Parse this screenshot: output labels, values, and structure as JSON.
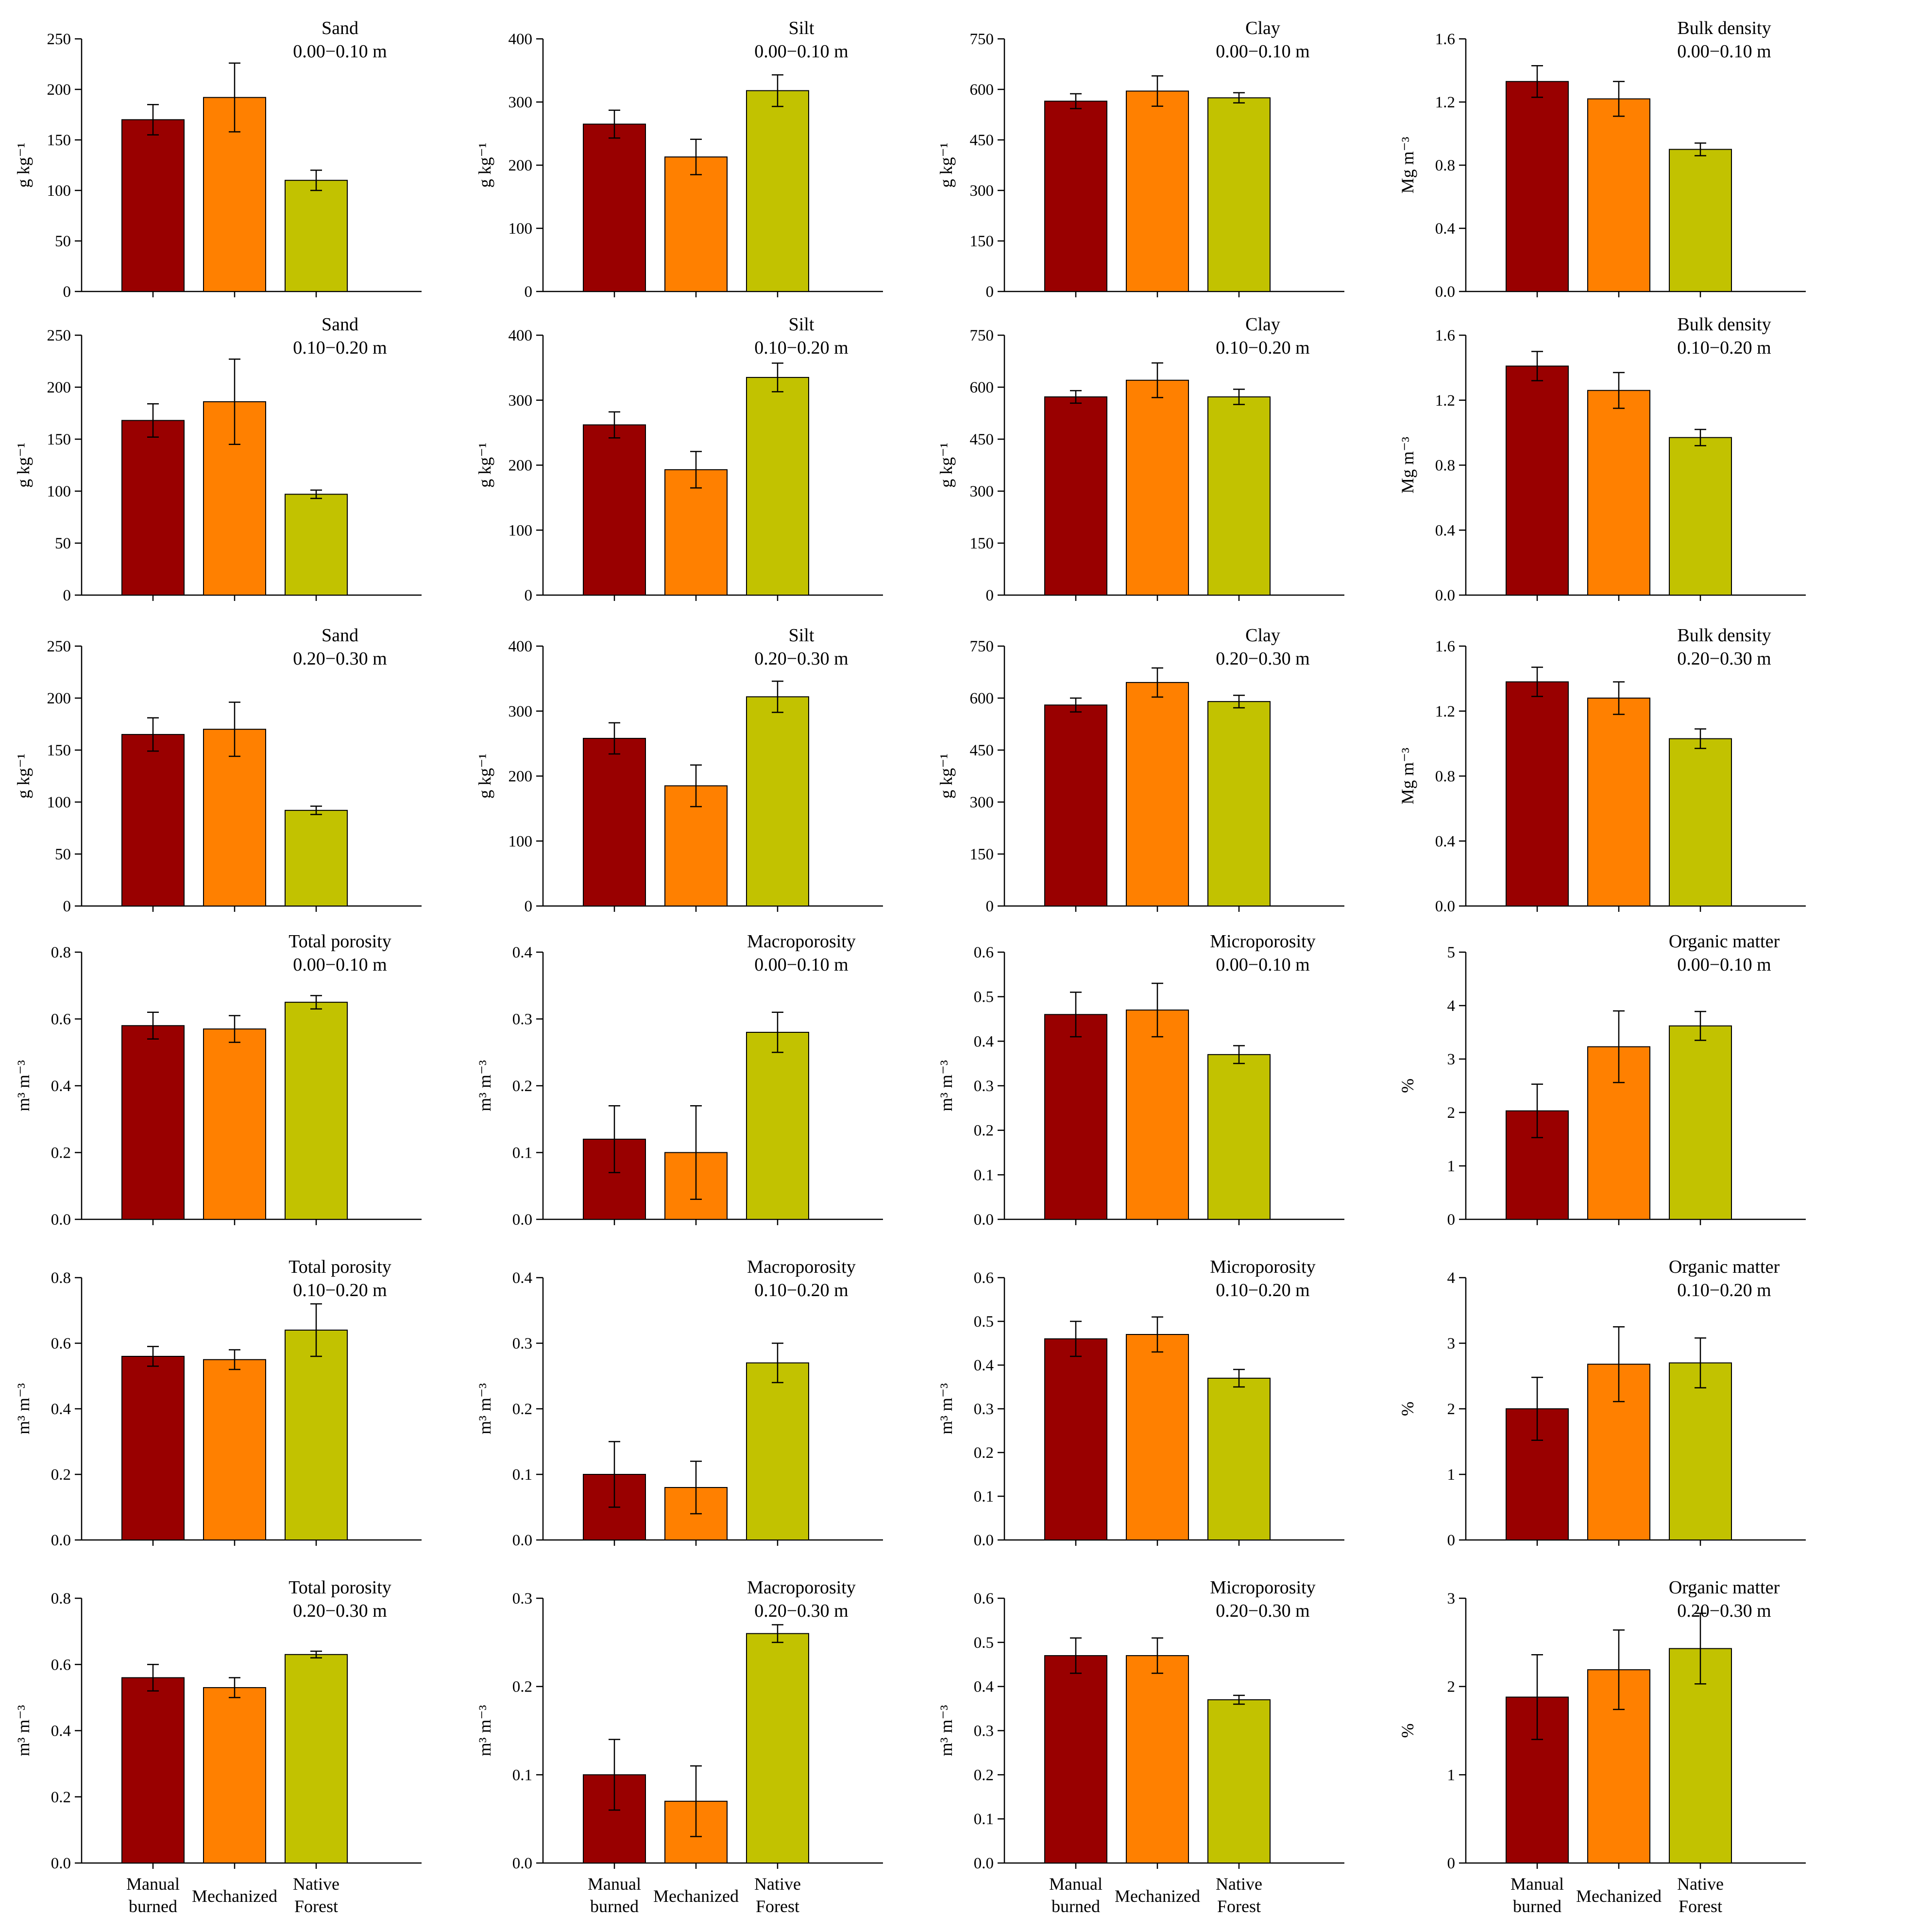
{
  "chart_data": {
    "type": "bar",
    "categories": [
      {
        "lines": [
          "Manual",
          "burned"
        ]
      },
      {
        "lines": [
          "Mechanized"
        ]
      },
      {
        "lines": [
          "Native",
          "Forest"
        ]
      }
    ],
    "colors": [
      "#990000",
      "#ff8000",
      "#c2c200"
    ],
    "panels": [
      {
        "title": "Sand",
        "depth": "0.00−0.10 m",
        "ylabel": "g kg⁻¹",
        "ylim": [
          0,
          250
        ],
        "yticks": [
          "0",
          "50",
          "100",
          "150",
          "200",
          "250"
        ],
        "values": [
          170,
          192,
          110
        ],
        "errors": [
          15,
          34,
          10
        ]
      },
      {
        "title": "Silt",
        "depth": "0.00−0.10 m",
        "ylabel": "g kg⁻¹",
        "ylim": [
          0,
          400
        ],
        "yticks": [
          "0",
          "100",
          "200",
          "300",
          "400"
        ],
        "values": [
          265,
          213,
          318
        ],
        "errors": [
          22,
          28,
          25
        ]
      },
      {
        "title": "Clay",
        "depth": "0.00−0.10 m",
        "ylabel": "g kg⁻¹",
        "ylim": [
          0,
          750
        ],
        "yticks": [
          "0",
          "150",
          "300",
          "450",
          "600",
          "750"
        ],
        "values": [
          565,
          595,
          575
        ],
        "errors": [
          22,
          45,
          15
        ]
      },
      {
        "title": "Bulk density",
        "depth": "0.00−0.10 m",
        "ylabel": "Mg m⁻³",
        "ylim": [
          0,
          1.6
        ],
        "yticks": [
          "0.0",
          "0.4",
          "0.8",
          "1.2",
          "1.6"
        ],
        "values": [
          1.33,
          1.22,
          0.9
        ],
        "errors": [
          0.1,
          0.11,
          0.04
        ]
      },
      {
        "title": "Sand",
        "depth": "0.10−0.20 m",
        "ylabel": "g kg⁻¹",
        "ylim": [
          0,
          250
        ],
        "yticks": [
          "0",
          "50",
          "100",
          "150",
          "200",
          "250"
        ],
        "values": [
          168,
          186,
          97
        ],
        "errors": [
          16,
          41,
          4
        ]
      },
      {
        "title": "Silt",
        "depth": "0.10−0.20 m",
        "ylabel": "g kg⁻¹",
        "ylim": [
          0,
          400
        ],
        "yticks": [
          "0",
          "100",
          "200",
          "300",
          "400"
        ],
        "values": [
          262,
          193,
          335
        ],
        "errors": [
          20,
          28,
          22
        ]
      },
      {
        "title": "Clay",
        "depth": "0.10−0.20 m",
        "ylabel": "g kg⁻¹",
        "ylim": [
          0,
          750
        ],
        "yticks": [
          "0",
          "150",
          "300",
          "450",
          "600",
          "750"
        ],
        "values": [
          572,
          620,
          572
        ],
        "errors": [
          18,
          50,
          22
        ]
      },
      {
        "title": "Bulk density",
        "depth": "0.10−0.20 m",
        "ylabel": "Mg m⁻³",
        "ylim": [
          0,
          1.6
        ],
        "yticks": [
          "0.0",
          "0.4",
          "0.8",
          "1.2",
          "1.6"
        ],
        "values": [
          1.41,
          1.26,
          0.97
        ],
        "errors": [
          0.09,
          0.11,
          0.05
        ]
      },
      {
        "title": "Sand",
        "depth": "0.20−0.30 m",
        "ylabel": "g kg⁻¹",
        "ylim": [
          0,
          250
        ],
        "yticks": [
          "0",
          "50",
          "100",
          "150",
          "200",
          "250"
        ],
        "values": [
          165,
          170,
          92
        ],
        "errors": [
          16,
          26,
          4
        ]
      },
      {
        "title": "Silt",
        "depth": "0.20−0.30 m",
        "ylabel": "g kg⁻¹",
        "ylim": [
          0,
          400
        ],
        "yticks": [
          "0",
          "100",
          "200",
          "300",
          "400"
        ],
        "values": [
          258,
          185,
          322
        ],
        "errors": [
          24,
          32,
          24
        ]
      },
      {
        "title": "Clay",
        "depth": "0.20−0.30 m",
        "ylabel": "g kg⁻¹",
        "ylim": [
          0,
          750
        ],
        "yticks": [
          "0",
          "150",
          "300",
          "450",
          "600",
          "750"
        ],
        "values": [
          580,
          645,
          590
        ],
        "errors": [
          20,
          42,
          18
        ]
      },
      {
        "title": "Bulk density",
        "depth": "0.20−0.30 m",
        "ylabel": "Mg m⁻³",
        "ylim": [
          0,
          1.6
        ],
        "yticks": [
          "0.0",
          "0.4",
          "0.8",
          "1.2",
          "1.6"
        ],
        "values": [
          1.38,
          1.28,
          1.03
        ],
        "errors": [
          0.09,
          0.1,
          0.06
        ]
      },
      {
        "title": "Total porosity",
        "depth": "0.00−0.10 m",
        "ylabel": "m³ m⁻³",
        "ylim": [
          0,
          0.8
        ],
        "yticks": [
          "0.0",
          "0.2",
          "0.4",
          "0.6",
          "0.8"
        ],
        "values": [
          0.58,
          0.57,
          0.65
        ],
        "errors": [
          0.04,
          0.04,
          0.02
        ]
      },
      {
        "title": "Macroporosity",
        "depth": "0.00−0.10 m",
        "ylabel": "m³ m⁻³",
        "ylim": [
          0,
          0.4
        ],
        "yticks": [
          "0.0",
          "0.1",
          "0.2",
          "0.3",
          "0.4"
        ],
        "values": [
          0.12,
          0.1,
          0.28
        ],
        "errors": [
          0.05,
          0.07,
          0.03
        ]
      },
      {
        "title": "Microporosity",
        "depth": "0.00−0.10 m",
        "ylabel": "m³ m⁻³",
        "ylim": [
          0,
          0.6
        ],
        "yticks": [
          "0.0",
          "0.1",
          "0.2",
          "0.3",
          "0.4",
          "0.5",
          "0.6"
        ],
        "values": [
          0.46,
          0.47,
          0.37
        ],
        "errors": [
          0.05,
          0.06,
          0.02
        ]
      },
      {
        "title": "Organic matter",
        "depth": "0.00−0.10 m",
        "ylabel": "%",
        "ylim": [
          0,
          5
        ],
        "yticks": [
          "0",
          "1",
          "2",
          "3",
          "4",
          "5"
        ],
        "values": [
          2.03,
          3.23,
          3.62
        ],
        "errors": [
          0.5,
          0.67,
          0.27
        ]
      },
      {
        "title": "Total porosity",
        "depth": "0.10−0.20 m",
        "ylabel": "m³ m⁻³",
        "ylim": [
          0,
          0.8
        ],
        "yticks": [
          "0.0",
          "0.2",
          "0.4",
          "0.6",
          "0.8"
        ],
        "values": [
          0.56,
          0.55,
          0.64
        ],
        "errors": [
          0.03,
          0.03,
          0.08
        ]
      },
      {
        "title": "Macroporosity",
        "depth": "0.10−0.20 m",
        "ylabel": "m³ m⁻³",
        "ylim": [
          0,
          0.4
        ],
        "yticks": [
          "0.0",
          "0.1",
          "0.2",
          "0.3",
          "0.4"
        ],
        "values": [
          0.1,
          0.08,
          0.27
        ],
        "errors": [
          0.05,
          0.04,
          0.03
        ]
      },
      {
        "title": "Microporosity",
        "depth": "0.10−0.20 m",
        "ylabel": "m³ m⁻³",
        "ylim": [
          0,
          0.6
        ],
        "yticks": [
          "0.0",
          "0.1",
          "0.2",
          "0.3",
          "0.4",
          "0.5",
          "0.6"
        ],
        "values": [
          0.46,
          0.47,
          0.37
        ],
        "errors": [
          0.04,
          0.04,
          0.02
        ]
      },
      {
        "title": "Organic matter",
        "depth": "0.10−0.20 m",
        "ylabel": "%",
        "ylim": [
          0,
          4
        ],
        "yticks": [
          "0",
          "1",
          "2",
          "3",
          "4"
        ],
        "values": [
          2.0,
          2.68,
          2.7
        ],
        "errors": [
          0.48,
          0.57,
          0.38
        ]
      },
      {
        "title": "Total porosity",
        "depth": "0.20−0.30 m",
        "ylabel": "m³ m⁻³",
        "ylim": [
          0,
          0.8
        ],
        "yticks": [
          "0.0",
          "0.2",
          "0.4",
          "0.6",
          "0.8"
        ],
        "values": [
          0.56,
          0.53,
          0.63
        ],
        "errors": [
          0.04,
          0.03,
          0.01
        ]
      },
      {
        "title": "Macroporosity",
        "depth": "0.20−0.30 m",
        "ylabel": "m³ m⁻³",
        "ylim": [
          0,
          0.3
        ],
        "yticks": [
          "0.0",
          "0.1",
          "0.2",
          "0.3"
        ],
        "values": [
          0.1,
          0.07,
          0.26
        ],
        "errors": [
          0.04,
          0.04,
          0.01
        ]
      },
      {
        "title": "Microporosity",
        "depth": "0.20−0.30 m",
        "ylabel": "m³ m⁻³",
        "ylim": [
          0,
          0.6
        ],
        "yticks": [
          "0.0",
          "0.1",
          "0.2",
          "0.3",
          "0.4",
          "0.5",
          "0.6"
        ],
        "values": [
          0.47,
          0.47,
          0.37
        ],
        "errors": [
          0.04,
          0.04,
          0.01
        ]
      },
      {
        "title": "Organic matter",
        "depth": "0.20−0.30 m",
        "ylabel": "%",
        "ylim": [
          0,
          3
        ],
        "yticks": [
          "0",
          "1",
          "2",
          "3"
        ],
        "values": [
          1.88,
          2.19,
          2.43
        ],
        "errors": [
          0.48,
          0.45,
          0.4
        ]
      }
    ]
  }
}
